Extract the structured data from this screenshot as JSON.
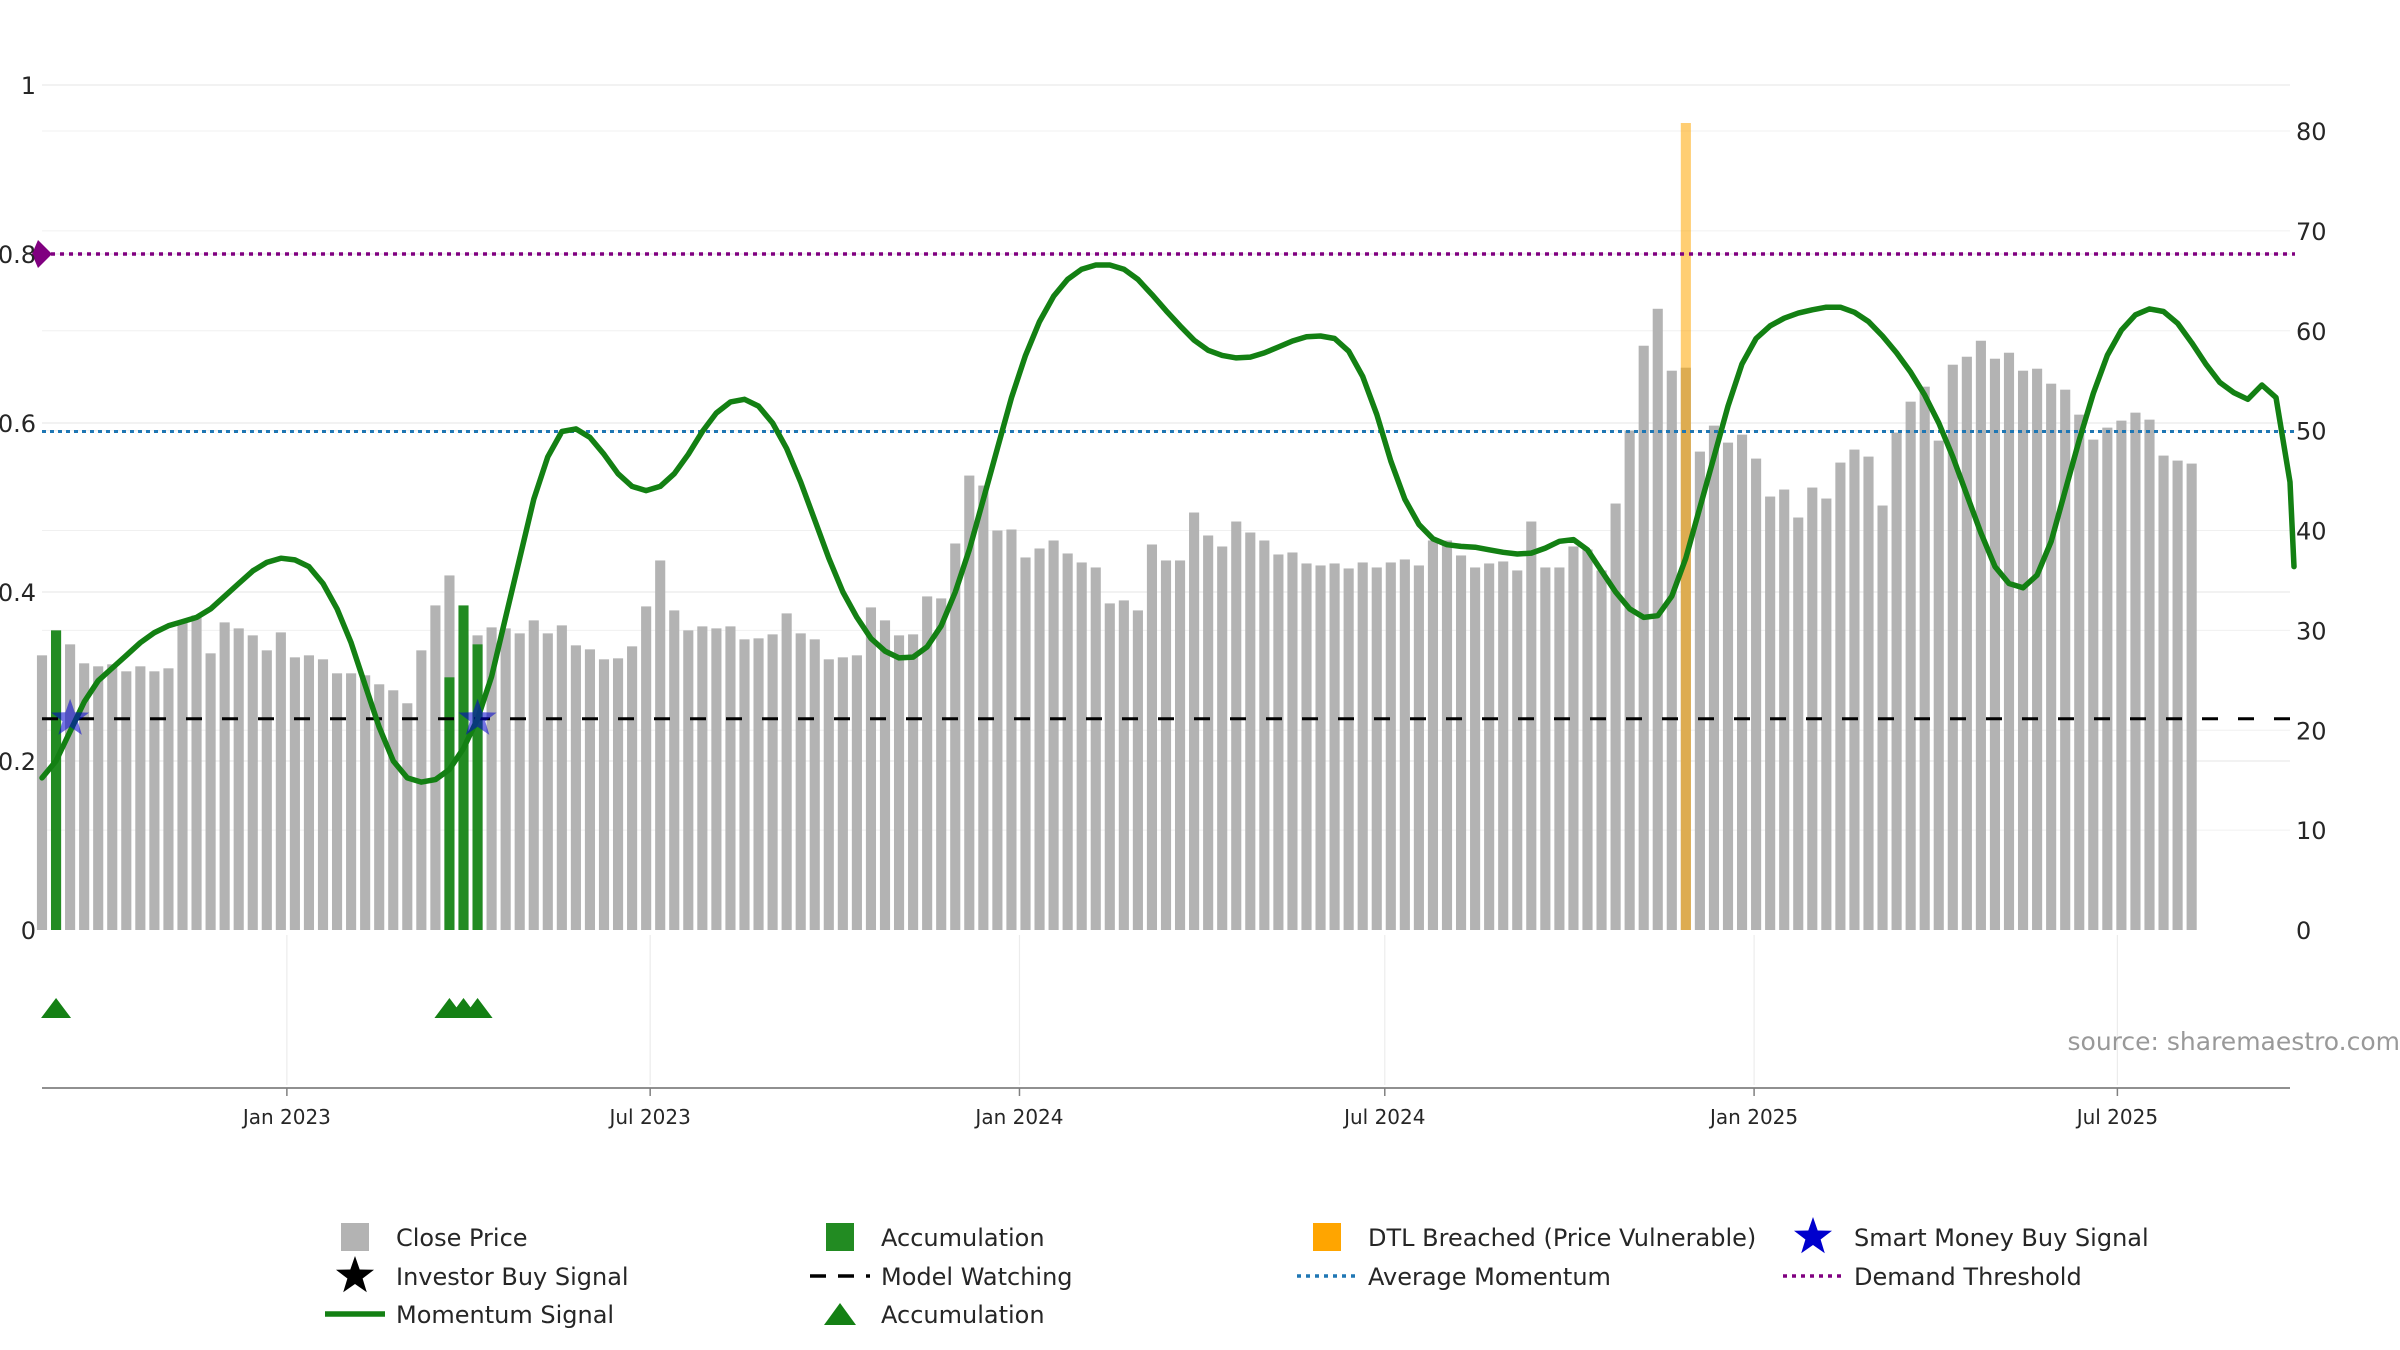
{
  "chart_data": {
    "type": "bar",
    "title": "",
    "xlabel": "",
    "ylabel": "",
    "x_axis": {
      "start": "2022-09-01",
      "end": "2025-09-25",
      "ticks": [
        {
          "date": "2023-01-01",
          "label": "Jan 2023"
        },
        {
          "date": "2023-07-01",
          "label": "Jul 2023"
        },
        {
          "date": "2024-01-01",
          "label": "Jan 2024"
        },
        {
          "date": "2024-07-01",
          "label": "Jul 2024"
        },
        {
          "date": "2025-01-01",
          "label": "Jan 2025"
        },
        {
          "date": "2025-07-01",
          "label": "Jul 2025"
        }
      ]
    },
    "y_left": {
      "range": [
        0,
        1
      ],
      "ticks": [
        "0",
        "0.2",
        "0.4",
        "0.6",
        "0.8",
        "1"
      ]
    },
    "y_right": {
      "range": [
        0,
        80
      ],
      "ticks": [
        "0",
        "10",
        "20",
        "30",
        "40",
        "50",
        "60",
        "70",
        "80"
      ]
    },
    "grid": true,
    "legend_position": "bottom",
    "colors": {
      "close_price": "#b3b3b3",
      "accumulation": "#228b22",
      "dtl": "#ffa500",
      "smart_money": "#0000cd",
      "momentum": "#138013",
      "average_momentum": "#1f77b4",
      "demand_threshold": "#800080",
      "model_watching": "#000000",
      "triangle": "#148014"
    },
    "close_price": {
      "name": "Close Price",
      "first_date": "2022-09-01",
      "step_days": 7,
      "values": [
        27.5,
        30,
        28.6,
        26.7,
        26.4,
        26.6,
        25.9,
        26.4,
        25.9,
        26.2,
        30.9,
        31.5,
        27.7,
        30.8,
        30.2,
        29.5,
        28,
        29.8,
        27.3,
        27.5,
        27.1,
        25.7,
        25.7,
        25.5,
        24.6,
        24,
        22.7,
        28,
        32.5,
        35.5,
        29.5,
        29.5,
        30.3,
        30.2,
        29.7,
        31,
        29.7,
        30.5,
        28.5,
        28.1,
        27.1,
        27.2,
        28.4,
        32.4,
        37,
        32,
        30,
        30.4,
        30.2,
        30.4,
        29.1,
        29.2,
        29.6,
        31.7,
        29.7,
        29.1,
        27.1,
        27.3,
        27.5,
        32.3,
        31,
        29.5,
        29.6,
        33.4,
        33.2,
        38.7,
        45.5,
        44.5,
        40,
        40.1,
        37.3,
        38.2,
        39,
        37.7,
        36.8,
        36.3,
        32.7,
        33,
        32,
        38.6,
        37,
        37,
        41.8,
        39.5,
        38.4,
        40.9,
        39.8,
        39,
        37.6,
        37.8,
        36.7,
        36.5,
        36.7,
        36.2,
        36.8,
        36.3,
        36.8,
        37.1,
        36.5,
        39,
        39,
        37.5,
        36.3,
        36.7,
        36.9,
        36,
        40.9,
        36.3,
        36.3,
        38.4,
        38.1,
        36,
        42.7,
        50,
        58.5,
        62.2,
        56,
        56.3,
        47.9,
        50.5,
        48.8,
        49.6,
        47.2,
        43.4,
        44.1,
        41.3,
        44.3,
        43.2,
        46.8,
        48.1,
        47.4,
        42.5,
        49.8,
        52.9,
        54.4,
        49,
        56.6,
        57.4,
        59,
        57.2,
        57.8,
        56,
        56.2,
        54.7,
        54.1,
        51.6,
        49.1,
        50.3,
        51,
        51.8,
        51.1,
        47.5,
        47,
        46.7
      ]
    },
    "momentum": {
      "name": "Momentum Signal",
      "scale": "left",
      "points": [
        [
          "2022-09-01",
          0.18
        ],
        [
          "2022-09-08",
          0.2
        ],
        [
          "2022-09-15",
          0.235
        ],
        [
          "2022-09-22",
          0.27
        ],
        [
          "2022-09-29",
          0.295
        ],
        [
          "2022-10-06",
          0.31
        ],
        [
          "2022-10-13",
          0.325
        ],
        [
          "2022-10-20",
          0.34
        ],
        [
          "2022-10-27",
          0.352
        ],
        [
          "2022-11-03",
          0.36
        ],
        [
          "2022-11-10",
          0.365
        ],
        [
          "2022-11-17",
          0.37
        ],
        [
          "2022-11-24",
          0.38
        ],
        [
          "2022-12-01",
          0.395
        ],
        [
          "2022-12-08",
          0.41
        ],
        [
          "2022-12-15",
          0.425
        ],
        [
          "2022-12-22",
          0.435
        ],
        [
          "2022-12-29",
          0.44
        ],
        [
          "2023-01-05",
          0.438
        ],
        [
          "2023-01-12",
          0.43
        ],
        [
          "2023-01-19",
          0.41
        ],
        [
          "2023-01-26",
          0.38
        ],
        [
          "2023-02-02",
          0.34
        ],
        [
          "2023-02-09",
          0.29
        ],
        [
          "2023-02-16",
          0.24
        ],
        [
          "2023-02-23",
          0.2
        ],
        [
          "2023-03-02",
          0.18
        ],
        [
          "2023-03-09",
          0.175
        ],
        [
          "2023-03-16",
          0.178
        ],
        [
          "2023-03-23",
          0.19
        ],
        [
          "2023-03-30",
          0.215
        ],
        [
          "2023-04-06",
          0.25
        ],
        [
          "2023-04-13",
          0.3
        ],
        [
          "2023-04-20",
          0.37
        ],
        [
          "2023-04-27",
          0.44
        ],
        [
          "2023-05-04",
          0.51
        ],
        [
          "2023-05-11",
          0.56
        ],
        [
          "2023-05-18",
          0.59
        ],
        [
          "2023-05-25",
          0.593
        ],
        [
          "2023-06-01",
          0.583
        ],
        [
          "2023-06-08",
          0.563
        ],
        [
          "2023-06-15",
          0.54
        ],
        [
          "2023-06-22",
          0.525
        ],
        [
          "2023-06-29",
          0.52
        ],
        [
          "2023-07-06",
          0.525
        ],
        [
          "2023-07-13",
          0.54
        ],
        [
          "2023-07-20",
          0.563
        ],
        [
          "2023-07-27",
          0.59
        ],
        [
          "2023-08-03",
          0.612
        ],
        [
          "2023-08-10",
          0.625
        ],
        [
          "2023-08-17",
          0.628
        ],
        [
          "2023-08-24",
          0.62
        ],
        [
          "2023-08-31",
          0.6
        ],
        [
          "2023-09-07",
          0.57
        ],
        [
          "2023-09-14",
          0.53
        ],
        [
          "2023-09-21",
          0.485
        ],
        [
          "2023-09-28",
          0.44
        ],
        [
          "2023-10-05",
          0.4
        ],
        [
          "2023-10-12",
          0.37
        ],
        [
          "2023-10-19",
          0.345
        ],
        [
          "2023-10-26",
          0.33
        ],
        [
          "2023-11-02",
          0.322
        ],
        [
          "2023-11-09",
          0.323
        ],
        [
          "2023-11-16",
          0.335
        ],
        [
          "2023-11-23",
          0.36
        ],
        [
          "2023-11-30",
          0.4
        ],
        [
          "2023-12-07",
          0.45
        ],
        [
          "2023-12-14",
          0.51
        ],
        [
          "2023-12-21",
          0.57
        ],
        [
          "2023-12-28",
          0.63
        ],
        [
          "2024-01-04",
          0.68
        ],
        [
          "2024-01-11",
          0.72
        ],
        [
          "2024-01-18",
          0.75
        ],
        [
          "2024-01-25",
          0.77
        ],
        [
          "2024-02-01",
          0.782
        ],
        [
          "2024-02-08",
          0.787
        ],
        [
          "2024-02-15",
          0.787
        ],
        [
          "2024-02-22",
          0.782
        ],
        [
          "2024-02-29",
          0.77
        ],
        [
          "2024-03-07",
          0.752
        ],
        [
          "2024-03-14",
          0.733
        ],
        [
          "2024-03-21",
          0.715
        ],
        [
          "2024-03-28",
          0.698
        ],
        [
          "2024-04-04",
          0.686
        ],
        [
          "2024-04-11",
          0.68
        ],
        [
          "2024-04-18",
          0.677
        ],
        [
          "2024-04-25",
          0.678
        ],
        [
          "2024-05-02",
          0.683
        ],
        [
          "2024-05-09",
          0.69
        ],
        [
          "2024-05-16",
          0.697
        ],
        [
          "2024-05-23",
          0.702
        ],
        [
          "2024-05-30",
          0.703
        ],
        [
          "2024-06-06",
          0.7
        ],
        [
          "2024-06-13",
          0.685
        ],
        [
          "2024-06-20",
          0.655
        ],
        [
          "2024-06-27",
          0.61
        ],
        [
          "2024-07-04",
          0.555
        ],
        [
          "2024-07-11",
          0.51
        ],
        [
          "2024-07-18",
          0.48
        ],
        [
          "2024-07-25",
          0.463
        ],
        [
          "2024-08-01",
          0.456
        ],
        [
          "2024-08-08",
          0.454
        ],
        [
          "2024-08-15",
          0.453
        ],
        [
          "2024-08-22",
          0.45
        ],
        [
          "2024-08-29",
          0.447
        ],
        [
          "2024-09-05",
          0.445
        ],
        [
          "2024-09-12",
          0.446
        ],
        [
          "2024-09-19",
          0.452
        ],
        [
          "2024-09-26",
          0.46
        ],
        [
          "2024-10-03",
          0.462
        ],
        [
          "2024-10-10",
          0.45
        ],
        [
          "2024-10-17",
          0.425
        ],
        [
          "2024-10-24",
          0.4
        ],
        [
          "2024-10-31",
          0.38
        ],
        [
          "2024-11-07",
          0.37
        ],
        [
          "2024-11-14",
          0.372
        ],
        [
          "2024-11-21",
          0.395
        ],
        [
          "2024-11-28",
          0.44
        ],
        [
          "2024-12-05",
          0.5
        ],
        [
          "2024-12-12",
          0.56
        ],
        [
          "2024-12-19",
          0.62
        ],
        [
          "2024-12-26",
          0.67
        ],
        [
          "2025-01-02",
          0.7
        ],
        [
          "2025-01-09",
          0.715
        ],
        [
          "2025-01-16",
          0.724
        ],
        [
          "2025-01-23",
          0.73
        ],
        [
          "2025-01-30",
          0.734
        ],
        [
          "2025-02-06",
          0.737
        ],
        [
          "2025-02-13",
          0.737
        ],
        [
          "2025-02-20",
          0.731
        ],
        [
          "2025-02-27",
          0.72
        ],
        [
          "2025-03-06",
          0.703
        ],
        [
          "2025-03-13",
          0.683
        ],
        [
          "2025-03-20",
          0.66
        ],
        [
          "2025-03-27",
          0.633
        ],
        [
          "2025-04-03",
          0.6
        ],
        [
          "2025-04-10",
          0.56
        ],
        [
          "2025-04-17",
          0.515
        ],
        [
          "2025-04-24",
          0.47
        ],
        [
          "2025-05-01",
          0.43
        ],
        [
          "2025-05-08",
          0.41
        ],
        [
          "2025-05-15",
          0.405
        ],
        [
          "2025-05-22",
          0.42
        ],
        [
          "2025-05-29",
          0.46
        ],
        [
          "2025-06-05",
          0.52
        ],
        [
          "2025-06-12",
          0.58
        ],
        [
          "2025-06-19",
          0.635
        ],
        [
          "2025-06-26",
          0.68
        ],
        [
          "2025-07-03",
          0.71
        ],
        [
          "2025-07-10",
          0.728
        ],
        [
          "2025-07-17",
          0.735
        ],
        [
          "2025-07-24",
          0.732
        ],
        [
          "2025-07-31",
          0.718
        ],
        [
          "2025-08-07",
          0.695
        ],
        [
          "2025-08-14",
          0.67
        ],
        [
          "2025-08-21",
          0.648
        ],
        [
          "2025-08-28",
          0.636
        ],
        [
          "2025-09-04",
          0.628
        ],
        [
          "2025-09-11",
          0.645
        ],
        [
          "2025-09-18",
          0.63
        ],
        [
          "2025-09-25",
          0.53
        ],
        [
          "2025-10-02",
          0.43
        ]
      ]
    },
    "average_momentum": {
      "name": "Average Momentum",
      "value": 0.59,
      "scale": "left"
    },
    "demand_threshold": {
      "name": "Demand Threshold",
      "value": 0.8,
      "scale": "left"
    },
    "model_watching": {
      "name": "Model Watching",
      "value": 0.25,
      "scale": "left"
    },
    "accumulation_bars": {
      "name": "Accumulation",
      "dates": [
        "2022-09-08",
        "2023-03-23",
        "2023-03-30",
        "2023-04-06"
      ],
      "values": [
        30,
        25.3,
        32.5,
        28.6
      ]
    },
    "dtl_breached": {
      "name": "DTL Breached (Price Vulnerable)",
      "date": "2024-11-28",
      "value": 80.8
    },
    "smart_money_signals": {
      "name": "Smart Money Buy Signal",
      "dates": [
        "2022-09-15",
        "2023-04-06"
      ],
      "value": 0.25
    },
    "accumulation_triangles": {
      "name": "Accumulation",
      "dates": [
        "2022-09-08",
        "2023-03-23",
        "2023-03-30",
        "2023-04-06"
      ]
    },
    "legend": [
      {
        "label": "Close Price",
        "marker": "square",
        "color": "#b3b3b3"
      },
      {
        "label": "Accumulation",
        "marker": "square",
        "color": "#228b22"
      },
      {
        "label": "DTL Breached (Price Vulnerable)",
        "marker": "square",
        "color": "#ffa500"
      },
      {
        "label": "Smart Money Buy Signal",
        "marker": "star",
        "color": "#0000cd"
      },
      {
        "label": "Investor Buy Signal",
        "marker": "star",
        "color": "#000000"
      },
      {
        "label": "Model Watching",
        "marker": "dash",
        "color": "#000000"
      },
      {
        "label": "Average Momentum",
        "marker": "dot",
        "color": "#1f77b4"
      },
      {
        "label": "Demand Threshold",
        "marker": "dot",
        "color": "#800080"
      },
      {
        "label": "Momentum Signal",
        "marker": "line",
        "color": "#138013"
      },
      {
        "label": "Accumulation",
        "marker": "triangle",
        "color": "#148014"
      }
    ],
    "source": "source: sharemaestro.com"
  }
}
